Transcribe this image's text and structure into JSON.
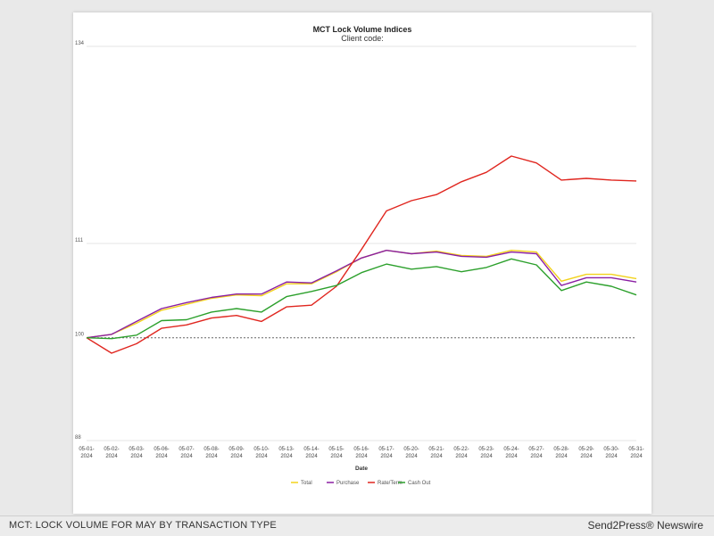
{
  "caption": {
    "left": "MCT: LOCK VOLUME FOR MAY BY TRANSACTION TYPE",
    "right": "Send2Press® Newswire"
  },
  "chart_data": {
    "type": "line",
    "title": "MCT Lock Volume Indices",
    "subtitle": "Client code:",
    "xlabel": "Date",
    "ylabel": "",
    "ylim": [
      88,
      134
    ],
    "yticks": [
      88,
      100,
      111,
      134
    ],
    "reference_line": 100,
    "legend_position": "bottom",
    "categories": [
      "05-01-2024",
      "05-02-2024",
      "05-03-2024",
      "05-06-2024",
      "05-07-2024",
      "05-08-2024",
      "05-09-2024",
      "05-10-2024",
      "05-13-2024",
      "05-14-2024",
      "05-15-2024",
      "05-16-2024",
      "05-17-2024",
      "05-20-2024",
      "05-21-2024",
      "05-22-2024",
      "05-23-2024",
      "05-24-2024",
      "05-27-2024",
      "05-28-2024",
      "05-29-2024",
      "05-30-2024",
      "05-31-2024"
    ],
    "series": [
      {
        "name": "Total",
        "color": "#f2d21b",
        "values": [
          100,
          100.4,
          101.7,
          103.2,
          103.9,
          104.6,
          105.0,
          104.9,
          106.3,
          106.3,
          107.7,
          109.3,
          110.2,
          109.8,
          110.1,
          109.6,
          109.5,
          110.2,
          110.0,
          106.6,
          107.4,
          107.4,
          106.9
        ]
      },
      {
        "name": "Purchase",
        "color": "#8a1fa3",
        "values": [
          100,
          100.4,
          101.9,
          103.4,
          104.1,
          104.7,
          105.1,
          105.1,
          106.5,
          106.4,
          107.8,
          109.3,
          110.2,
          109.8,
          110.0,
          109.5,
          109.4,
          110.0,
          109.8,
          106.1,
          107.0,
          107.0,
          106.5
        ]
      },
      {
        "name": "Rate/Term",
        "color": "#e0261f",
        "values": [
          100,
          98.2,
          99.3,
          101.1,
          101.5,
          102.3,
          102.6,
          101.9,
          103.6,
          103.8,
          106.0,
          110.3,
          114.8,
          116.0,
          116.7,
          118.2,
          119.3,
          121.2,
          120.4,
          118.4,
          118.6,
          118.4,
          118.3
        ]
      },
      {
        "name": "Cash Out",
        "color": "#2ca02c",
        "values": [
          100,
          99.9,
          100.3,
          102.0,
          102.1,
          103.0,
          103.4,
          103.0,
          104.8,
          105.4,
          106.1,
          107.6,
          108.6,
          108.0,
          108.3,
          107.7,
          108.2,
          109.2,
          108.5,
          105.5,
          106.5,
          106.0,
          105.0
        ]
      }
    ]
  }
}
